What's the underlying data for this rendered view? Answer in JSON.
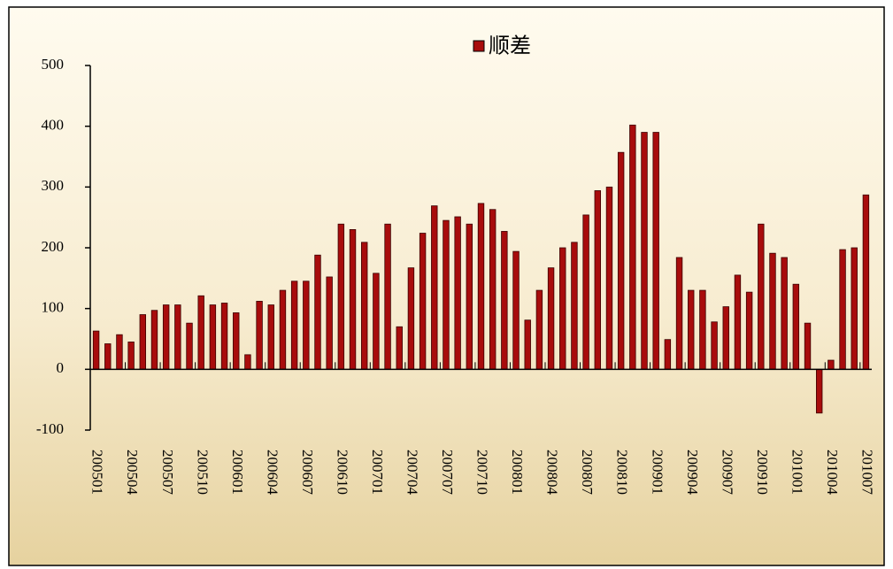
{
  "chart_data": {
    "type": "bar",
    "categories": [
      "200501",
      null,
      null,
      "200504",
      null,
      null,
      "200507",
      null,
      null,
      "200510",
      null,
      null,
      "200601",
      null,
      null,
      "200604",
      null,
      null,
      "200607",
      null,
      null,
      "200610",
      null,
      null,
      "200701",
      null,
      null,
      "200704",
      null,
      null,
      "200707",
      null,
      null,
      "200710",
      null,
      null,
      "200801",
      null,
      null,
      "200804",
      null,
      null,
      "200807",
      null,
      null,
      "200810",
      null,
      null,
      "200901",
      null,
      null,
      "200904",
      null,
      null,
      "200907",
      null,
      null,
      "200910",
      null,
      null,
      "201001",
      null,
      null,
      "201004",
      null,
      null,
      "201007"
    ],
    "series": [
      {
        "name": "顺差",
        "color": "#a80c0c",
        "values": [
          63,
          42,
          57,
          45,
          90,
          97,
          106,
          106,
          76,
          121,
          106,
          109,
          93,
          24,
          112,
          106,
          130,
          145,
          145,
          188,
          152,
          239,
          230,
          209,
          158,
          239,
          70,
          167,
          224,
          269,
          245,
          251,
          239,
          273,
          263,
          227,
          194,
          81,
          130,
          167,
          200,
          209,
          254,
          294,
          300,
          357,
          402,
          390,
          390,
          49,
          184,
          130,
          130,
          78,
          103,
          155,
          127,
          239,
          191,
          184,
          140,
          76,
          -72,
          15,
          197,
          200,
          287
        ]
      }
    ],
    "ylim": [
      -100,
      500
    ],
    "yticks": [
      -100,
      0,
      100,
      200,
      300,
      400,
      500
    ],
    "legend": "top"
  }
}
